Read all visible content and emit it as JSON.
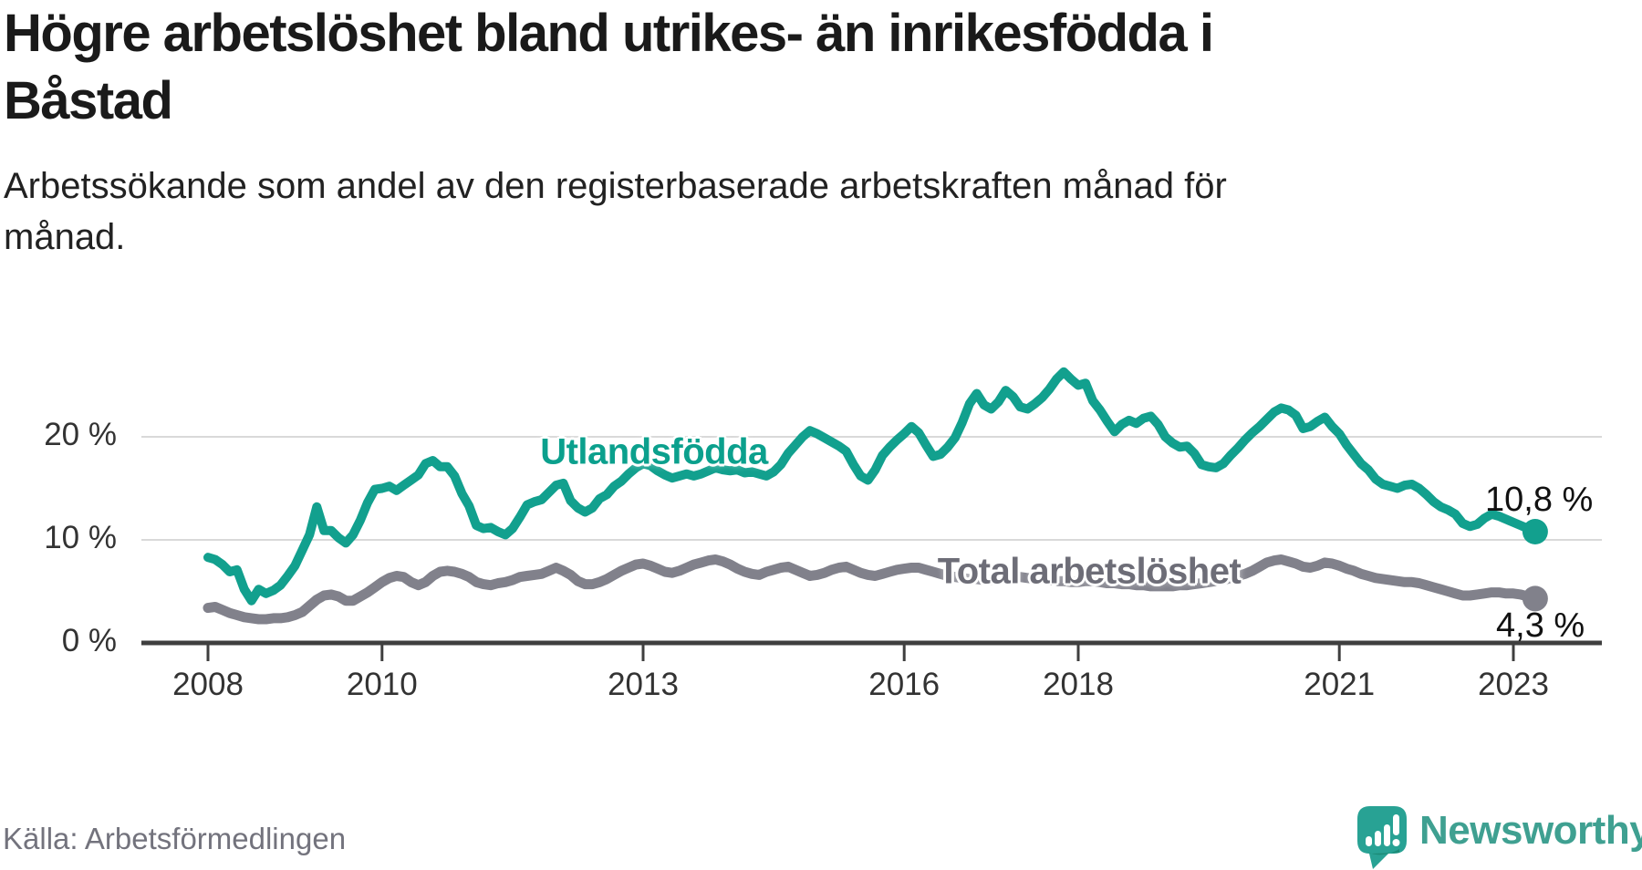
{
  "header": {
    "title_line1": "Högre arbetslöshet bland utrikes- än inrikesfödda i",
    "title_line2": "Båstad",
    "subtitle_line1": "Arbetssökande som andel av den registerbaserade arbetskraften månad för",
    "subtitle_line2": "månad."
  },
  "footer": {
    "source": "Källa: Arbetsförmedlingen",
    "brand": "Newsworthy"
  },
  "style": {
    "teal": "#12a08e",
    "teal_label": "#0ba08d",
    "gray": "#81818b",
    "gray_label": "#6d6d77",
    "grid_color": "#d9d9d9",
    "axis_color": "#3f3f3f",
    "axis_text": "#333333",
    "title_color": "#1a1a1a",
    "source_color": "#73737d",
    "brand_color": "#3fa091",
    "icon_color": "#28a294",
    "icon_shade": "#1c8b77"
  },
  "chart_data": {
    "type": "line",
    "title": "Högre arbetslöshet bland utrikes- än inrikesfödda i Båstad",
    "subtitle": "Arbetssökande som andel av den registerbaserade arbetskraften månad för månad.",
    "unit": "%",
    "frequency": "monthly",
    "x_start": "2008-01",
    "x_end": "2023-04",
    "grid": "horizontal",
    "legend": "inline-labels",
    "y_axis": {
      "ticks": [
        0,
        10,
        20
      ],
      "tick_labels": [
        "0 %",
        "10 %",
        "20 %"
      ],
      "range": [
        0,
        27
      ]
    },
    "x_axis": {
      "tick_years": [
        2008,
        2010,
        2013,
        2016,
        2018,
        2021,
        2023
      ]
    },
    "series": [
      {
        "id": "utlandsfodda",
        "name": "Utlandsfödda",
        "color": "#12a08e",
        "end_value": 10.8,
        "end_label": "10,8 %",
        "values": [
          8.3,
          8.1,
          7.6,
          6.9,
          7.1,
          5.2,
          4.1,
          5.2,
          4.8,
          5.1,
          5.6,
          6.5,
          7.5,
          9.0,
          10.5,
          13.2,
          10.9,
          10.9,
          10.2,
          9.7,
          10.5,
          11.9,
          13.6,
          14.9,
          15.0,
          15.2,
          14.8,
          15.3,
          15.8,
          16.3,
          17.4,
          17.7,
          17.1,
          17.1,
          16.2,
          14.5,
          13.3,
          11.4,
          11.1,
          11.2,
          10.8,
          10.5,
          11.1,
          12.2,
          13.4,
          13.7,
          13.9,
          14.6,
          15.3,
          15.5,
          13.8,
          13.1,
          12.7,
          13.1,
          14.0,
          14.4,
          15.2,
          15.7,
          16.4,
          17.0,
          17.4,
          17.2,
          16.7,
          16.3,
          16.0,
          16.2,
          16.4,
          16.2,
          16.4,
          16.7,
          17.0,
          16.8,
          16.7,
          16.8,
          16.5,
          16.6,
          16.4,
          16.2,
          16.6,
          17.3,
          18.4,
          19.2,
          20.0,
          20.6,
          20.3,
          19.9,
          19.5,
          19.1,
          18.6,
          17.3,
          16.2,
          15.8,
          16.8,
          18.2,
          19.0,
          19.7,
          20.3,
          21.0,
          20.4,
          19.2,
          18.1,
          18.3,
          19.0,
          19.9,
          21.4,
          23.2,
          24.2,
          23.1,
          22.7,
          23.4,
          24.5,
          23.9,
          22.9,
          22.7,
          23.2,
          23.8,
          24.6,
          25.6,
          26.3,
          25.6,
          25.0,
          25.2,
          23.5,
          22.6,
          21.5,
          20.5,
          21.2,
          21.6,
          21.3,
          21.8,
          22.0,
          21.2,
          20.0,
          19.4,
          19.0,
          19.1,
          18.4,
          17.3,
          17.1,
          17.0,
          17.4,
          18.2,
          18.9,
          19.7,
          20.4,
          21.0,
          21.7,
          22.4,
          22.8,
          22.6,
          22.1,
          20.8,
          21.0,
          21.5,
          21.9,
          21.0,
          20.3,
          19.2,
          18.3,
          17.4,
          16.8,
          15.9,
          15.4,
          15.2,
          15.0,
          15.3,
          15.4,
          15.0,
          14.4,
          13.7,
          13.2,
          12.9,
          12.5,
          11.6,
          11.3,
          11.5,
          12.1,
          12.5,
          12.3,
          12.0,
          11.7,
          11.4,
          11.1,
          10.8
        ]
      },
      {
        "id": "total",
        "name": "Total arbetslöshet",
        "color": "#81818b",
        "end_value": 4.3,
        "end_label": "4,3 %",
        "values": [
          3.4,
          3.5,
          3.2,
          2.9,
          2.7,
          2.5,
          2.4,
          2.3,
          2.3,
          2.4,
          2.4,
          2.5,
          2.7,
          3.0,
          3.6,
          4.2,
          4.6,
          4.7,
          4.5,
          4.1,
          4.1,
          4.5,
          4.9,
          5.4,
          5.9,
          6.3,
          6.5,
          6.4,
          5.9,
          5.6,
          5.9,
          6.5,
          6.9,
          7.0,
          6.9,
          6.7,
          6.4,
          5.9,
          5.7,
          5.6,
          5.8,
          5.9,
          6.1,
          6.4,
          6.5,
          6.6,
          6.7,
          7.0,
          7.3,
          7.0,
          6.6,
          6.0,
          5.7,
          5.7,
          5.9,
          6.2,
          6.6,
          7.0,
          7.3,
          7.6,
          7.7,
          7.5,
          7.2,
          6.9,
          6.8,
          7.0,
          7.3,
          7.6,
          7.8,
          8.0,
          8.1,
          7.9,
          7.6,
          7.2,
          6.9,
          6.7,
          6.6,
          6.9,
          7.1,
          7.3,
          7.4,
          7.1,
          6.8,
          6.5,
          6.6,
          6.8,
          7.1,
          7.3,
          7.4,
          7.1,
          6.8,
          6.6,
          6.5,
          6.7,
          6.9,
          7.1,
          7.2,
          7.3,
          7.3,
          7.1,
          6.9,
          6.7,
          6.5,
          6.4,
          6.3,
          6.2,
          6.2,
          6.1,
          6.1,
          6.2,
          6.3,
          6.4,
          6.4,
          6.3,
          6.2,
          6.2,
          6.1,
          6.0,
          6.0,
          5.9,
          5.9,
          6.0,
          6.0,
          5.9,
          5.8,
          5.8,
          5.7,
          5.7,
          5.6,
          5.6,
          5.5,
          5.5,
          5.5,
          5.5,
          5.6,
          5.6,
          5.7,
          5.8,
          5.9,
          6.0,
          6.1,
          6.3,
          6.5,
          6.7,
          7.0,
          7.4,
          7.8,
          8.0,
          8.1,
          7.9,
          7.7,
          7.4,
          7.3,
          7.5,
          7.8,
          7.7,
          7.5,
          7.2,
          7.0,
          6.7,
          6.5,
          6.3,
          6.2,
          6.1,
          6.0,
          5.9,
          5.9,
          5.8,
          5.6,
          5.4,
          5.2,
          5.0,
          4.8,
          4.6,
          4.6,
          4.7,
          4.8,
          4.9,
          4.9,
          4.8,
          4.8,
          4.7,
          4.5,
          4.3
        ]
      }
    ]
  }
}
